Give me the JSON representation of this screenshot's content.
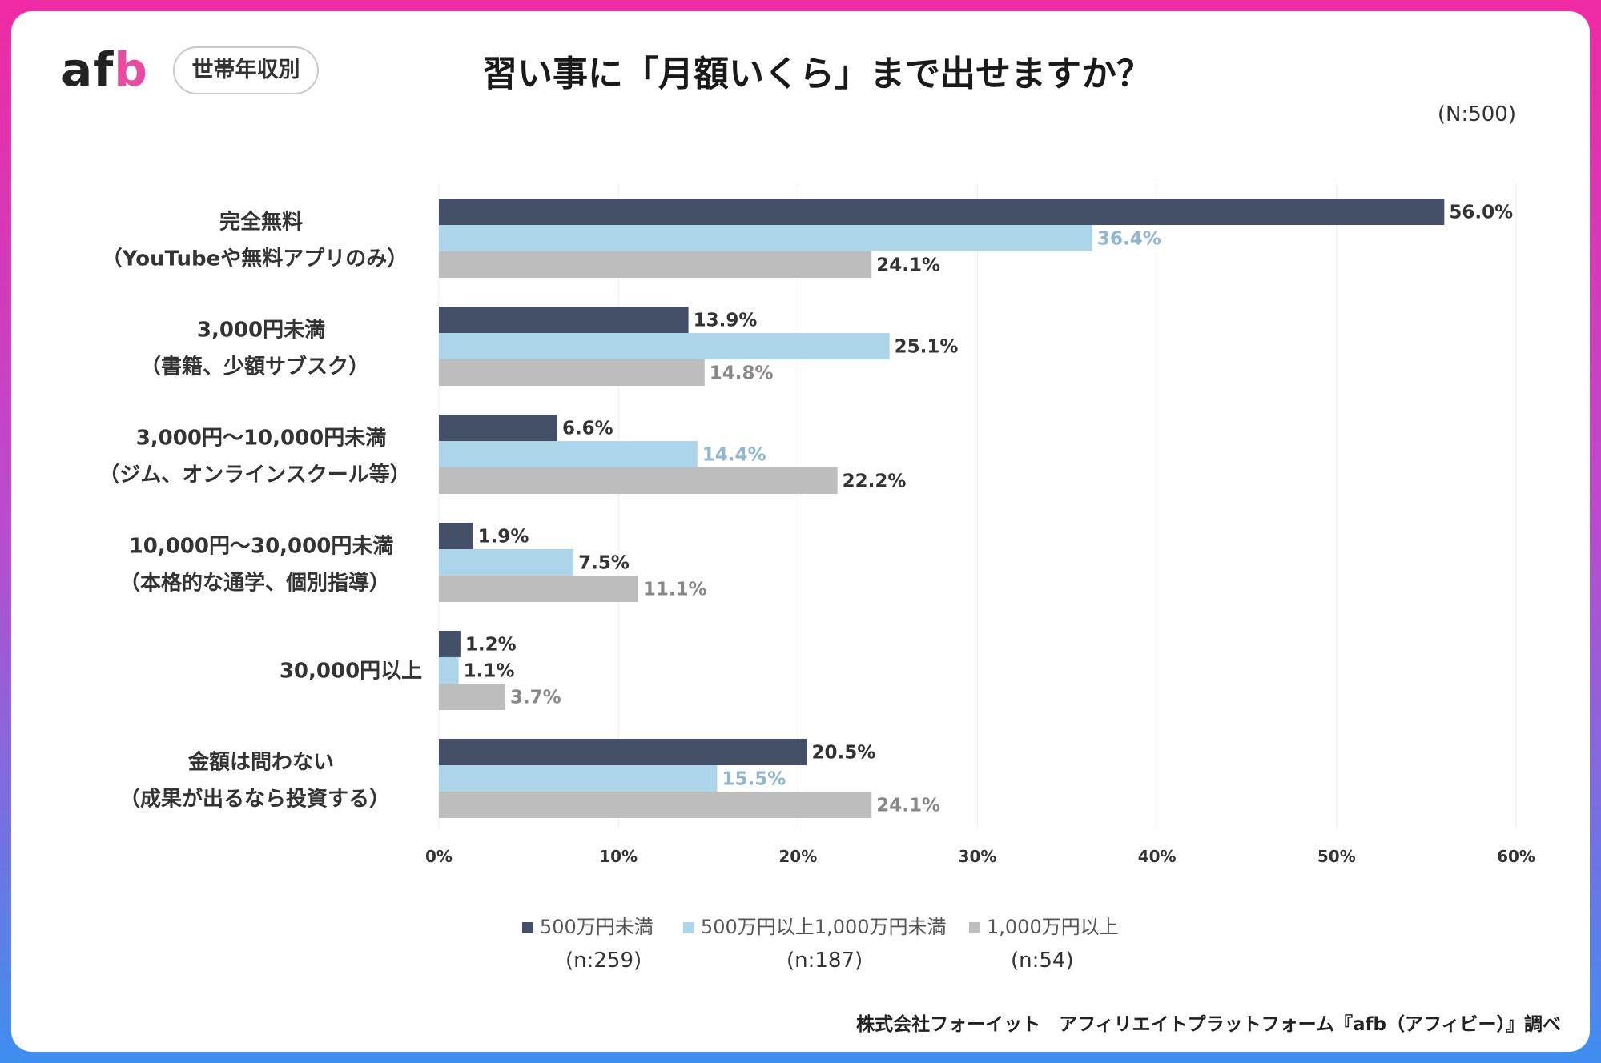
{
  "header": {
    "logo_part1": "af",
    "logo_part2": "b",
    "tag": "世帯年収別",
    "title": "習い事に「月額いくら」まで出せますか？",
    "sample": "(N:500)"
  },
  "colors": {
    "series1": "#435067",
    "series2": "#add5ea",
    "series3": "#bdbdbd"
  },
  "legend": [
    {
      "name": "500万円未満",
      "n": "(n:259)"
    },
    {
      "name": "500万円以上1,000万円未満",
      "n": "(n:187)"
    },
    {
      "name": "1,000万円以上",
      "n": "(n:54)"
    }
  ],
  "footer": "株式会社フォーイット　アフィリエイトプラットフォーム『afb（アフィビー）』調べ",
  "chart_data": {
    "type": "bar",
    "orientation": "horizontal",
    "categories": [
      [
        "完全無料",
        "（YouTubeや無料アプリのみ）"
      ],
      [
        "3,000円未満",
        "（書籍、少額サブスク）"
      ],
      [
        "3,000円～10,000円未満",
        "（ジム、オンラインスクール等）"
      ],
      [
        "10,000円～30,000円未満",
        "（本格的な通学、個別指導）"
      ],
      [
        "30,000円以上"
      ],
      [
        "金額は問わない",
        "（成果が出るなら投資する）"
      ]
    ],
    "series": [
      {
        "name": "500万円未満",
        "values": [
          56.0,
          13.9,
          6.6,
          1.9,
          1.2,
          20.5
        ],
        "labels": [
          "56.0%",
          "13.9%",
          "6.6%",
          "1.9%",
          "1.2%",
          "20.5%"
        ]
      },
      {
        "name": "500万円以上1,000万円未満",
        "values": [
          36.4,
          25.1,
          14.4,
          7.5,
          1.1,
          15.5
        ],
        "labels": [
          "36.4%",
          "25.1%",
          "14.4%",
          "7.5%",
          "1.1%",
          "15.5%"
        ]
      },
      {
        "name": "1,000万円以上",
        "values": [
          24.1,
          14.8,
          22.2,
          11.1,
          3.7,
          24.1
        ],
        "labels": [
          "24.1%",
          "14.8%",
          "22.2%",
          "11.1%",
          "3.7%",
          "24.1%"
        ]
      }
    ],
    "xlim": [
      0,
      60
    ],
    "xticks": [
      "0%",
      "10%",
      "20%",
      "30%",
      "40%",
      "50%",
      "60%"
    ],
    "grid": true,
    "legend_position": "bottom"
  }
}
